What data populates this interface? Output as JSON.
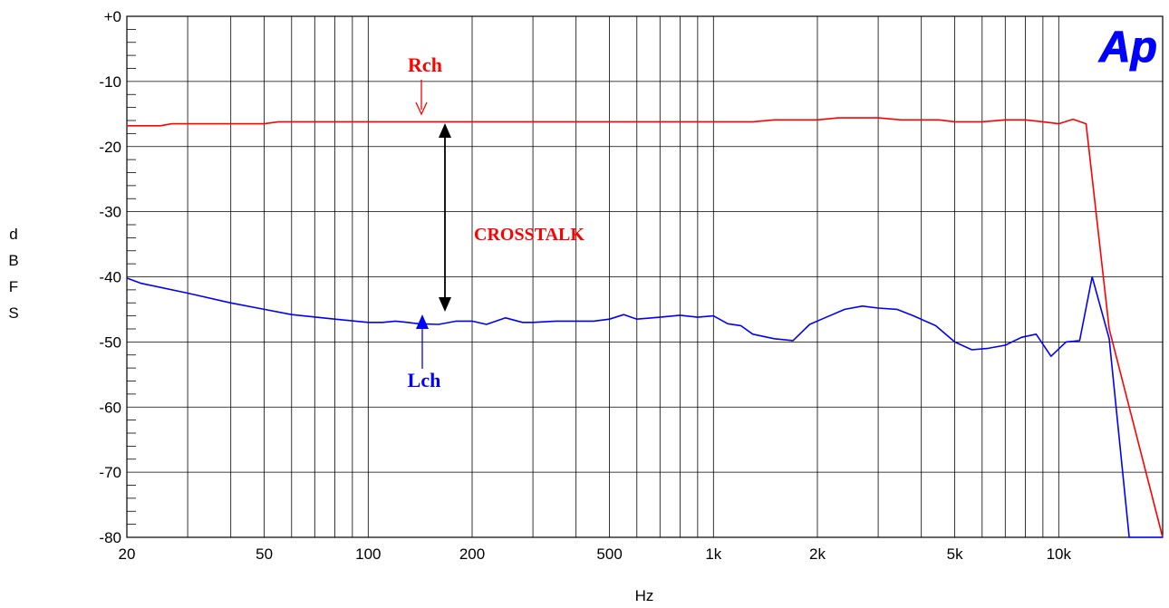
{
  "chart_data": {
    "type": "line",
    "title": "",
    "xlabel": "Hz",
    "ylabel": "dBFS",
    "ylabel_letters": [
      "d",
      "B",
      "F",
      "S"
    ],
    "x_scale": "log",
    "xlim": [
      20,
      20000
    ],
    "ylim": [
      -80,
      0
    ],
    "grid": true,
    "x_ticks": [
      {
        "value": 20,
        "label": "20"
      },
      {
        "value": 50,
        "label": "50"
      },
      {
        "value": 100,
        "label": "100"
      },
      {
        "value": 200,
        "label": "200"
      },
      {
        "value": 500,
        "label": "500"
      },
      {
        "value": 1000,
        "label": "1k"
      },
      {
        "value": 2000,
        "label": "2k"
      },
      {
        "value": 5000,
        "label": "5k"
      },
      {
        "value": 10000,
        "label": "10k"
      }
    ],
    "y_ticks": [
      {
        "value": 0,
        "label": "+0"
      },
      {
        "value": -10,
        "label": "-10"
      },
      {
        "value": -20,
        "label": "-20"
      },
      {
        "value": -30,
        "label": "-30"
      },
      {
        "value": -40,
        "label": "-40"
      },
      {
        "value": -50,
        "label": "-50"
      },
      {
        "value": -60,
        "label": "-60"
      },
      {
        "value": -70,
        "label": "-70"
      },
      {
        "value": -80,
        "label": "-80"
      }
    ],
    "series": [
      {
        "name": "Rch",
        "color": "#ff0000",
        "x": [
          20,
          25,
          27,
          30,
          40,
          50,
          55,
          70,
          100,
          150,
          200,
          300,
          500,
          700,
          1000,
          1300,
          1500,
          2000,
          2300,
          3000,
          3500,
          4500,
          5000,
          6000,
          7000,
          8000,
          9000,
          10000,
          11000,
          12000,
          14000,
          16000,
          20000
        ],
        "values": [
          -16.8,
          -16.8,
          -16.5,
          -16.5,
          -16.5,
          -16.5,
          -16.2,
          -16.2,
          -16.2,
          -16.2,
          -16.2,
          -16.2,
          -16.2,
          -16.2,
          -16.2,
          -16.2,
          -15.9,
          -15.9,
          -15.6,
          -15.6,
          -15.9,
          -15.9,
          -16.2,
          -16.2,
          -15.9,
          -15.9,
          -16.2,
          -16.5,
          -15.8,
          -16.5,
          -48,
          -60,
          -80
        ]
      },
      {
        "name": "Lch",
        "color": "#0000ff",
        "x": [
          20,
          22,
          30,
          40,
          50,
          60,
          80,
          100,
          110,
          120,
          130,
          140,
          160,
          180,
          200,
          220,
          250,
          280,
          300,
          350,
          400,
          450,
          500,
          550,
          600,
          700,
          800,
          900,
          1000,
          1100,
          1200,
          1300,
          1500,
          1700,
          1900,
          2100,
          2400,
          2700,
          3000,
          3400,
          3800,
          4400,
          5000,
          5600,
          6200,
          7000,
          7800,
          8600,
          9500,
          10500,
          11500,
          12500,
          14000,
          16000,
          17500,
          20000
        ],
        "values": [
          -40.2,
          -41,
          -42.5,
          -44,
          -45,
          -45.8,
          -46.5,
          -47,
          -47,
          -46.8,
          -47,
          -47.2,
          -47.3,
          -46.8,
          -46.8,
          -47.3,
          -46.3,
          -47,
          -47,
          -46.8,
          -46.8,
          -46.8,
          -46.5,
          -45.8,
          -46.5,
          -46.2,
          -45.9,
          -46.2,
          -46,
          -47.2,
          -47.5,
          -48.8,
          -49.5,
          -49.8,
          -47.3,
          -46.3,
          -45,
          -44.5,
          -44.8,
          -45,
          -46,
          -47.5,
          -50,
          -51.2,
          -51,
          -50.5,
          -49.3,
          -48.8,
          -52.2,
          -50,
          -49.8,
          -40,
          -49.5,
          -80,
          -80,
          -80
        ]
      }
    ],
    "annotations": [
      {
        "text": "Rch",
        "color": "#ff0000"
      },
      {
        "text": "Lch",
        "color": "#0000ff"
      },
      {
        "text": "CROSSTALK",
        "color": "#ff0000"
      }
    ],
    "logo_text": "Ap",
    "logo_color": "#0000ff"
  }
}
